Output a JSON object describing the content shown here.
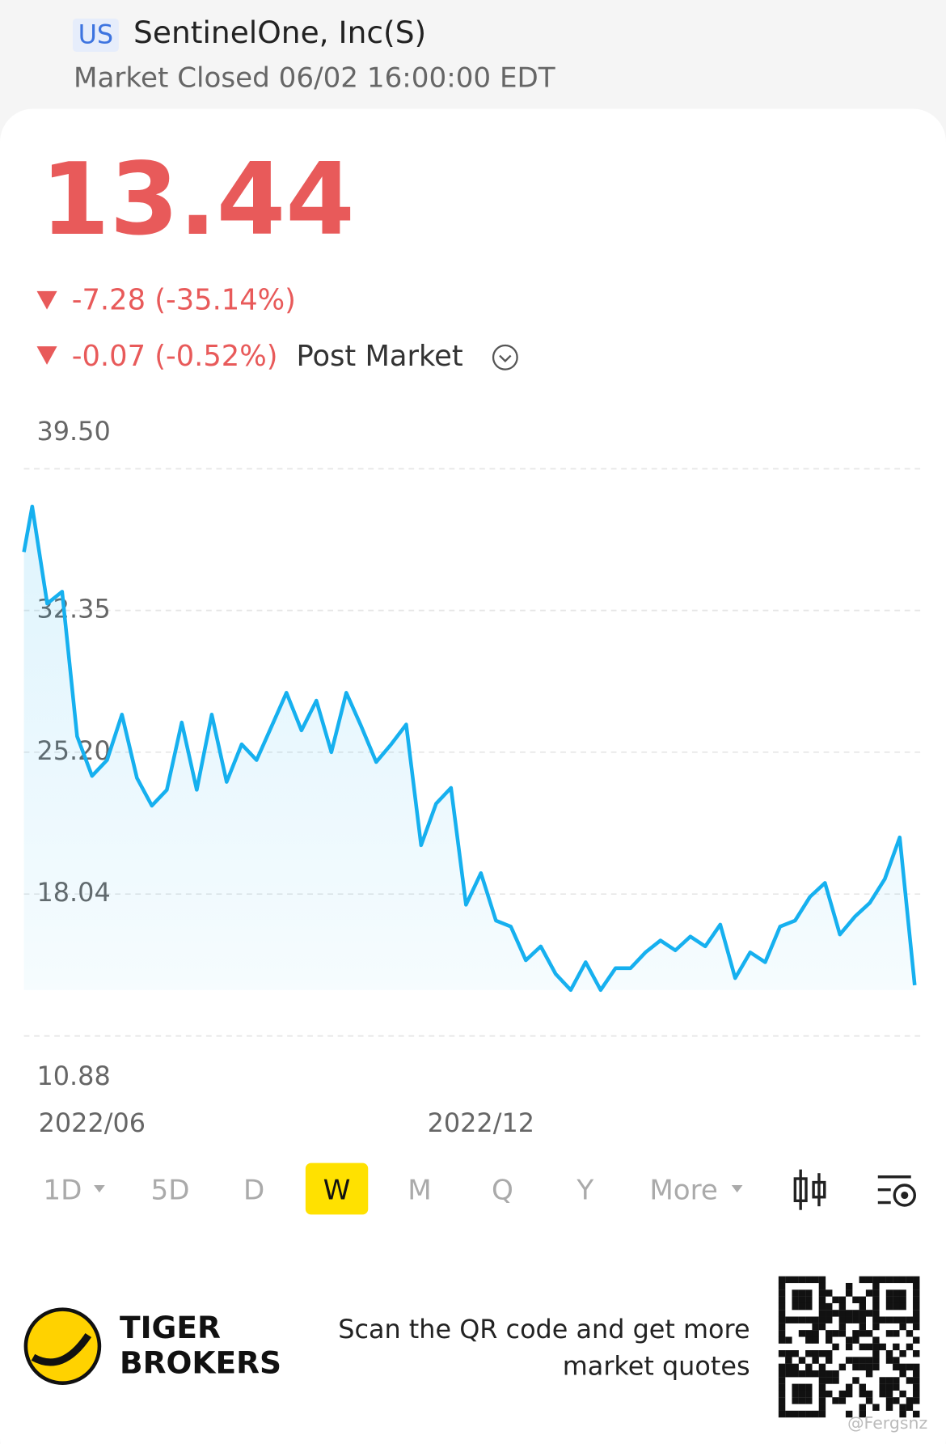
{
  "header": {
    "market": "US",
    "name": "SentinelOne, Inc(S)",
    "status": "Market Closed 06/02 16:00:00 EDT"
  },
  "quote": {
    "price": "13.44",
    "change": "-7.28 (-35.14%)",
    "post_change": "-0.07 (-0.52%)",
    "post_label": "Post Market"
  },
  "chart_data": {
    "type": "line",
    "color": "#16b0ef",
    "grid": true,
    "ylim": [
      10.88,
      39.5
    ],
    "yticks": [
      {
        "value": 39.5,
        "label": "39.50"
      },
      32.35,
      {
        "value": 25.2,
        "label": "25.20"
      },
      18.04,
      10.88
    ],
    "categories": [
      null,
      null,
      null,
      null,
      null,
      "2022/06",
      null,
      null,
      null,
      null,
      null,
      null,
      null,
      null,
      null,
      null,
      null,
      null,
      null,
      null,
      null,
      null,
      null,
      null,
      null,
      null,
      null,
      null,
      null,
      null,
      null,
      "2022/12",
      null,
      null,
      null,
      null,
      null,
      null,
      null,
      null,
      null,
      null,
      null,
      null,
      null,
      null,
      null,
      null,
      null,
      null,
      null,
      null,
      null,
      null,
      null,
      null,
      null,
      null,
      null,
      null,
      null
    ],
    "values": [
      35.3,
      37.6,
      32.7,
      33.3,
      26.0,
      24.0,
      24.8,
      27.1,
      23.9,
      22.5,
      23.3,
      26.7,
      23.3,
      27.1,
      23.7,
      25.6,
      24.8,
      26.5,
      28.2,
      26.3,
      27.8,
      25.2,
      28.2,
      26.5,
      24.7,
      25.6,
      26.6,
      20.5,
      22.6,
      23.4,
      17.5,
      19.1,
      16.7,
      16.4,
      14.7,
      15.4,
      14.0,
      13.2,
      14.6,
      13.2,
      14.3,
      14.3,
      15.1,
      15.7,
      15.2,
      15.9,
      15.4,
      16.5,
      13.8,
      15.1,
      14.6,
      16.4,
      16.7,
      17.9,
      18.6,
      16.0,
      16.9,
      17.6,
      18.8,
      20.9,
      13.44
    ]
  },
  "toolbar": [
    "1D",
    "5D",
    "D",
    "W",
    "M",
    "Q",
    "Y",
    "More"
  ],
  "footer": {
    "brand_line1": "TIGER",
    "brand_line2": "BROKERS",
    "scan_line1": "Scan the QR code and get more",
    "scan_line2": "market quotes",
    "watermark": "@Fergsnz"
  }
}
